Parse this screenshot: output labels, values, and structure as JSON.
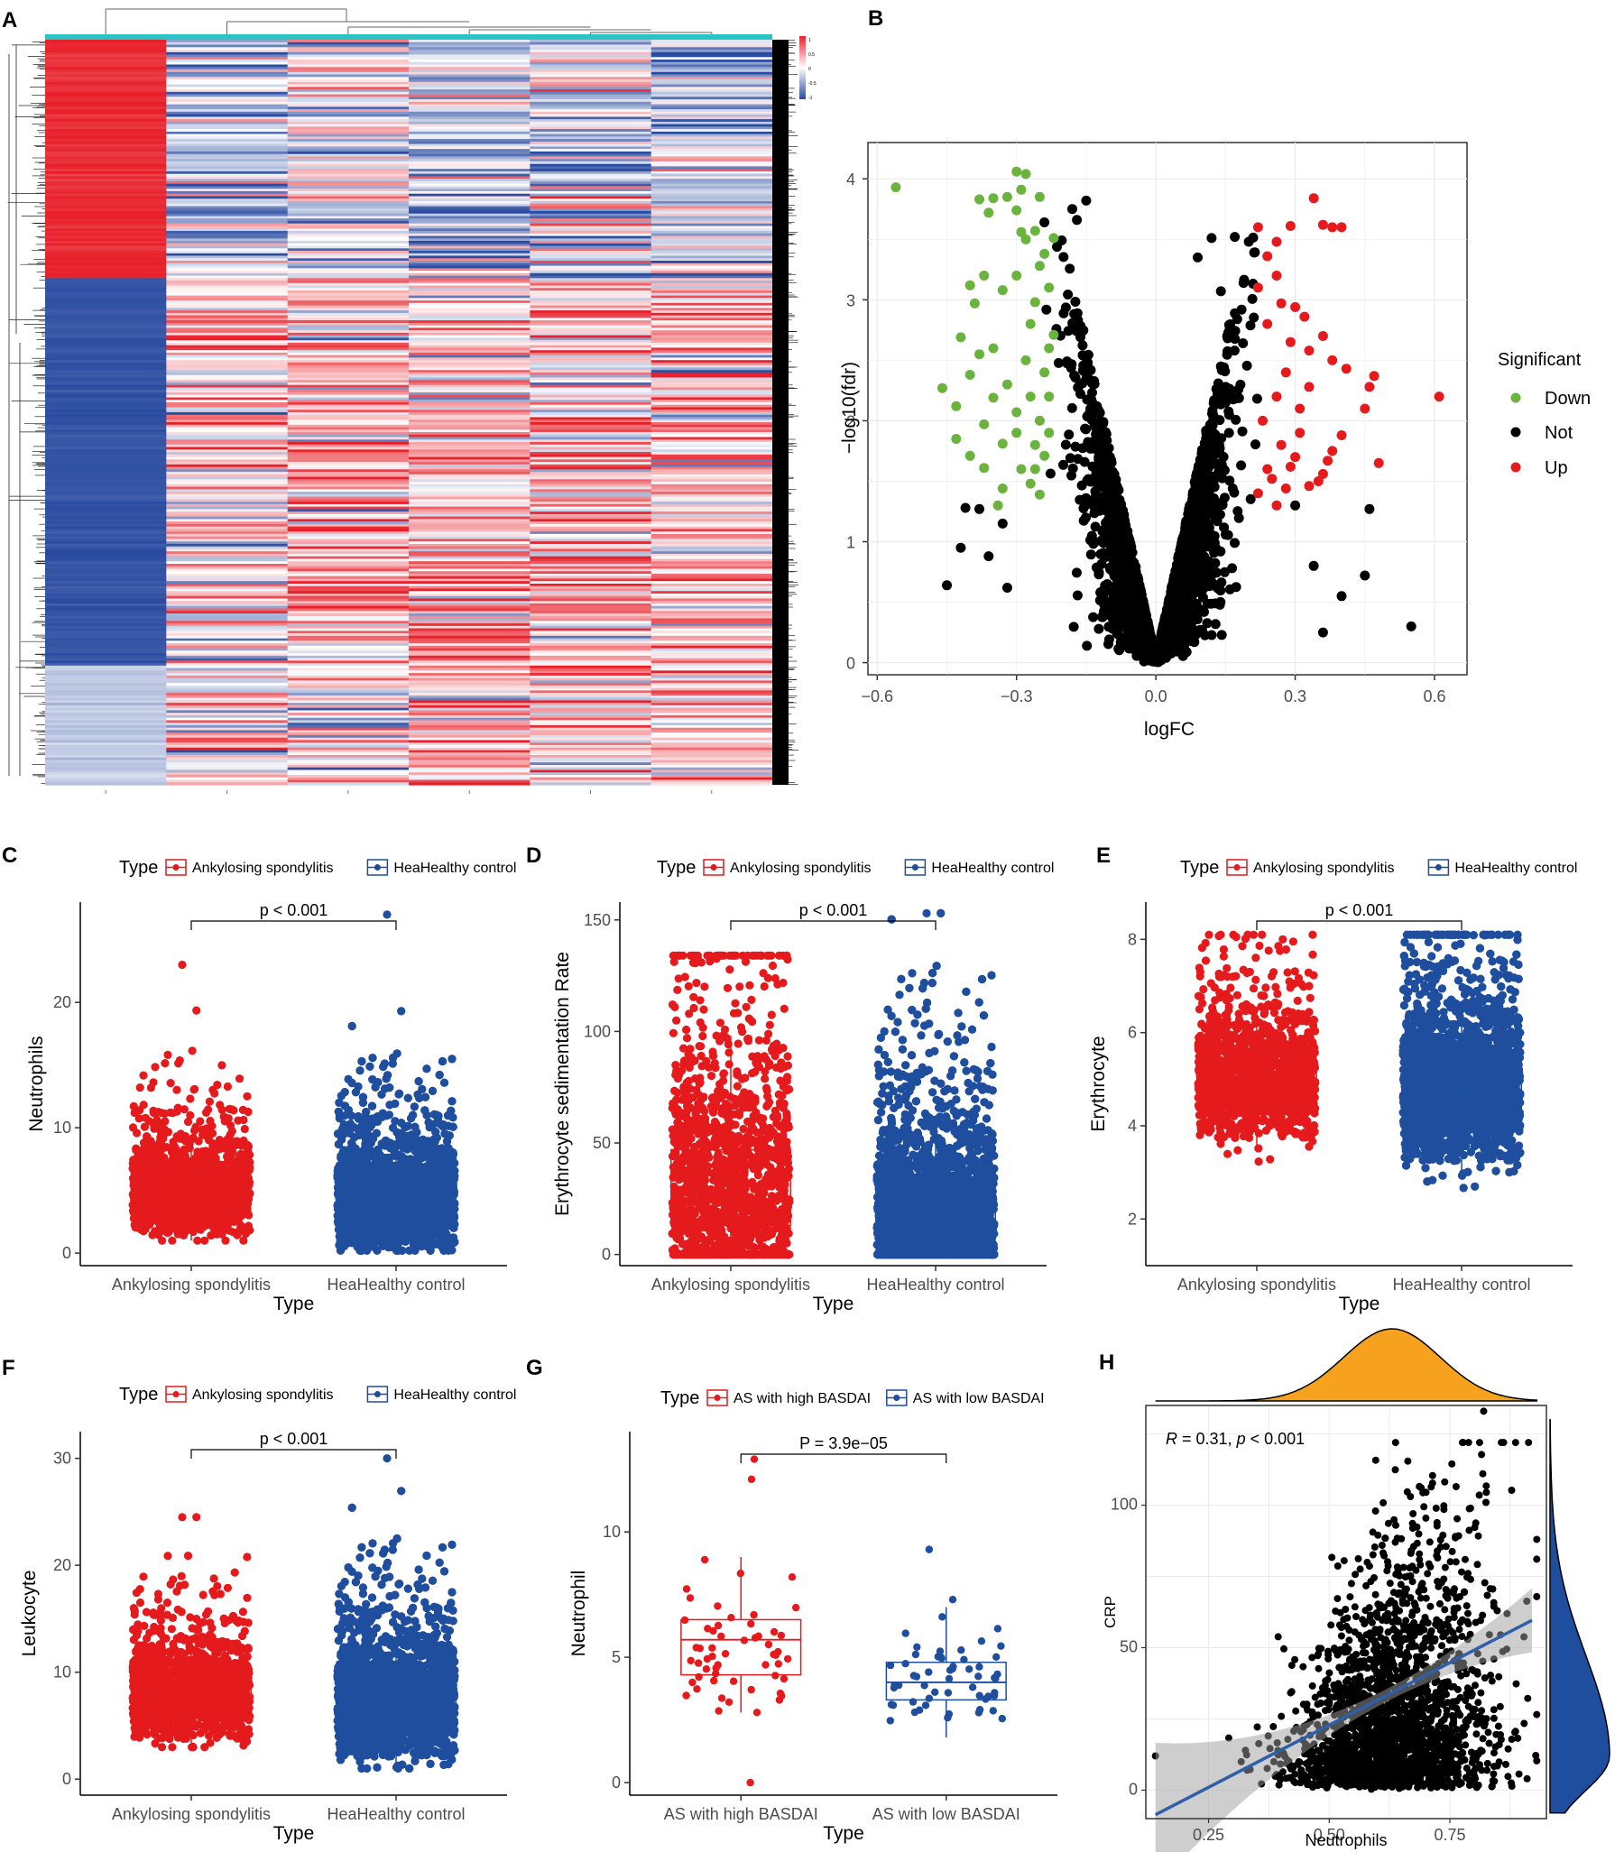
{
  "figure": {
    "colors": {
      "red": "#e41a1c",
      "blue": "#1f4e9e",
      "green": "#6ab33f",
      "black": "#000000",
      "orange": "#f6a21e",
      "heat_red": "#e8202a",
      "heat_blue": "#2a4ba0",
      "grid": "#ebebeb"
    }
  },
  "panels": {
    "A": {
      "label": "A",
      "n_columns": 6,
      "scale_labels": [
        "1",
        "0.5",
        "0",
        "-0.5",
        "-1"
      ]
    },
    "B": {
      "label": "B",
      "chart_data": {
        "type": "scatter",
        "title": "",
        "xlabel": "logFC",
        "ylabel": "−log10(fdr)",
        "xlim": [
          -0.62,
          0.67
        ],
        "ylim": [
          -0.1,
          4.3
        ],
        "xticks": [
          -0.6,
          -0.3,
          0.0,
          0.3,
          0.6
        ],
        "xtick_labels": [
          "−0.6",
          "−0.3",
          "0.0",
          "0.3",
          "0.6"
        ],
        "yticks": [
          0,
          1,
          2,
          3,
          4
        ],
        "ytick_labels": [
          "0",
          "1",
          "2",
          "3",
          "4"
        ],
        "legend_title": "Significant",
        "legend": [
          "Down",
          "Not",
          "Up"
        ],
        "series": [
          {
            "name": "Down",
            "color": "#6ab33f",
            "points": [
              [
                -0.56,
                3.93
              ],
              [
                -0.3,
                4.06
              ],
              [
                -0.28,
                4.04
              ],
              [
                -0.29,
                3.91
              ],
              [
                -0.32,
                3.85
              ],
              [
                -0.25,
                3.85
              ],
              [
                -0.38,
                3.83
              ],
              [
                -0.35,
                3.84
              ],
              [
                -0.36,
                3.72
              ],
              [
                -0.3,
                3.74
              ],
              [
                -0.29,
                3.56
              ],
              [
                -0.26,
                3.57
              ],
              [
                -0.28,
                3.5
              ],
              [
                -0.24,
                3.38
              ],
              [
                -0.25,
                3.28
              ],
              [
                -0.3,
                3.2
              ],
              [
                -0.37,
                3.2
              ],
              [
                -0.4,
                3.12
              ],
              [
                -0.33,
                3.08
              ],
              [
                -0.39,
                2.97
              ],
              [
                -0.42,
                2.69
              ],
              [
                -0.38,
                2.55
              ],
              [
                -0.35,
                2.6
              ],
              [
                -0.4,
                2.38
              ],
              [
                -0.46,
                2.27
              ],
              [
                -0.43,
                2.12
              ],
              [
                -0.35,
                2.19
              ],
              [
                -0.3,
                2.07
              ],
              [
                -0.37,
                1.97
              ],
              [
                -0.43,
                1.85
              ],
              [
                -0.33,
                1.81
              ],
              [
                -0.4,
                1.71
              ],
              [
                -0.37,
                1.61
              ],
              [
                -0.33,
                1.44
              ],
              [
                -0.29,
                1.6
              ],
              [
                -0.27,
                1.48
              ],
              [
                -0.26,
                1.6
              ],
              [
                -0.25,
                1.39
              ],
              [
                -0.24,
                1.71
              ],
              [
                -0.23,
                2.2
              ],
              [
                -0.22,
                2.71
              ],
              [
                -0.26,
                2.98
              ],
              [
                -0.23,
                3.1
              ],
              [
                -0.22,
                3.51
              ],
              [
                -0.28,
                2.5
              ],
              [
                -0.32,
                2.3
              ],
              [
                -0.24,
                2.4
              ],
              [
                -0.27,
                2.2
              ],
              [
                -0.3,
                1.9
              ],
              [
                -0.23,
                1.9
              ],
              [
                -0.26,
                1.8
              ],
              [
                -0.25,
                2.0
              ],
              [
                -0.27,
                2.8
              ],
              [
                -0.23,
                2.6
              ],
              [
                -0.34,
                1.3
              ]
            ]
          },
          {
            "name": "Not",
            "color": "#000000",
            "note": "dense V-shaped cloud generated in script"
          },
          {
            "name": "Up",
            "color": "#e41a1c",
            "points": [
              [
                0.34,
                3.84
              ],
              [
                0.29,
                3.61
              ],
              [
                0.36,
                3.62
              ],
              [
                0.38,
                3.6
              ],
              [
                0.4,
                3.6
              ],
              [
                0.22,
                3.6
              ],
              [
                0.26,
                3.48
              ],
              [
                0.24,
                3.36
              ],
              [
                0.26,
                3.2
              ],
              [
                0.22,
                3.1
              ],
              [
                0.27,
                2.97
              ],
              [
                0.3,
                2.94
              ],
              [
                0.32,
                2.86
              ],
              [
                0.24,
                2.8
              ],
              [
                0.36,
                2.7
              ],
              [
                0.29,
                2.65
              ],
              [
                0.33,
                2.58
              ],
              [
                0.38,
                2.5
              ],
              [
                0.41,
                2.43
              ],
              [
                0.47,
                2.37
              ],
              [
                0.33,
                2.28
              ],
              [
                0.46,
                2.28
              ],
              [
                0.61,
                2.2
              ],
              [
                0.45,
                2.1
              ],
              [
                0.26,
                2.2
              ],
              [
                0.4,
                1.88
              ],
              [
                0.38,
                1.75
              ],
              [
                0.37,
                1.67
              ],
              [
                0.48,
                1.65
              ],
              [
                0.36,
                1.56
              ],
              [
                0.29,
                1.62
              ],
              [
                0.25,
                1.52
              ],
              [
                0.22,
                1.4
              ],
              [
                0.28,
                1.44
              ],
              [
                0.33,
                1.46
              ],
              [
                0.23,
                2.0
              ],
              [
                0.27,
                1.8
              ],
              [
                0.31,
                1.9
              ],
              [
                0.35,
                1.5
              ],
              [
                0.3,
                1.7
              ],
              [
                0.24,
                1.6
              ],
              [
                0.28,
                2.4
              ],
              [
                0.31,
                2.1
              ],
              [
                0.26,
                1.3
              ]
            ]
          }
        ]
      }
    },
    "C": {
      "label": "C",
      "legend_title": "Type",
      "legend": [
        "Ankylosing spondylitis",
        "HeaHealthy control"
      ],
      "pvalue": "p < 0.001",
      "chart_data": {
        "type": "boxplot",
        "categories": [
          "Ankylosing spondylitis",
          "HeaHealthy control"
        ],
        "xlabel": "Type",
        "ylabel": "Neutrophils",
        "ylim": [
          -1,
          28
        ],
        "yticks": [
          0,
          10,
          20
        ],
        "series": [
          {
            "name": "Ankylosing spondylitis",
            "color": "#e41a1c",
            "q1": 3.9,
            "median": 4.8,
            "q3": 6.0,
            "whisker_low": 1.0,
            "whisker_high": 9.1,
            "n_points": 1500,
            "max": 23.0
          },
          {
            "name": "HeaHealthy control",
            "color": "#1f4e9e",
            "q1": 3.1,
            "median": 4.0,
            "q3": 5.3,
            "whisker_low": 0.2,
            "whisker_high": 8.6,
            "n_points": 6000,
            "max": 27.0
          }
        ]
      }
    },
    "D": {
      "label": "D",
      "legend_title": "Type",
      "legend": [
        "Ankylosing spondylitis",
        "HeaHealthy control"
      ],
      "pvalue": "p < 0.001",
      "chart_data": {
        "type": "boxplot",
        "categories": [
          "Ankylosing spondylitis",
          "HeaHealthy control"
        ],
        "xlabel": "Type",
        "ylabel": "Erythrocyte sedimentation Rate",
        "ylim": [
          -5,
          158
        ],
        "yticks": [
          0,
          50,
          100,
          150
        ],
        "series": [
          {
            "name": "Ankylosing spondylitis",
            "color": "#e41a1c",
            "q1": 13,
            "median": 25,
            "q3": 47,
            "whisker_low": 0,
            "whisker_high": 98,
            "n_points": 1500,
            "max": 134
          },
          {
            "name": "HeaHealthy control",
            "color": "#1f4e9e",
            "q1": 7,
            "median": 14,
            "q3": 28,
            "whisker_low": 0,
            "whisker_high": 60,
            "n_points": 6000,
            "max": 153
          }
        ]
      }
    },
    "E": {
      "label": "E",
      "legend_title": "Type",
      "legend": [
        "Ankylosing spondylitis",
        "HeaHealthy control"
      ],
      "pvalue": "p < 0.001",
      "chart_data": {
        "type": "boxplot",
        "categories": [
          "Ankylosing spondylitis",
          "HeaHealthy control"
        ],
        "xlabel": "Type",
        "ylabel": "Erythrocyte",
        "ylim": [
          1.0,
          8.8
        ],
        "yticks": [
          2,
          4,
          6,
          8
        ],
        "series": [
          {
            "name": "Ankylosing spondylitis",
            "color": "#e41a1c",
            "q1": 4.6,
            "median": 4.95,
            "q3": 5.35,
            "whisker_low": 3.5,
            "whisker_high": 6.5,
            "n_points": 1500,
            "max": 8.1
          },
          {
            "name": "HeaHealthy control",
            "color": "#1f4e9e",
            "q1": 4.3,
            "median": 4.7,
            "q3": 5.2,
            "whisker_low": 3.0,
            "whisker_high": 6.5,
            "n_points": 6000,
            "max": 8.1
          }
        ]
      }
    },
    "F": {
      "label": "F",
      "legend_title": "Type",
      "legend": [
        "Ankylosing spondylitis",
        "HeaHealthy control"
      ],
      "pvalue": "p < 0.001",
      "chart_data": {
        "type": "boxplot",
        "categories": [
          "Ankylosing spondylitis",
          "HeaHealthy control"
        ],
        "xlabel": "Type",
        "ylabel": "Leukocyte",
        "ylim": [
          -1.5,
          32.5
        ],
        "yticks": [
          0,
          10,
          20,
          30
        ],
        "series": [
          {
            "name": "Ankylosing spondylitis",
            "color": "#e41a1c",
            "q1": 6.7,
            "median": 7.8,
            "q3": 9.2,
            "whisker_low": 3.0,
            "whisker_high": 13.0,
            "n_points": 1500,
            "max": 24.5
          },
          {
            "name": "HeaHealthy control",
            "color": "#1f4e9e",
            "q1": 5.6,
            "median": 6.8,
            "q3": 8.5,
            "whisker_low": 1.0,
            "whisker_high": 12.5,
            "n_points": 6000,
            "max": 30
          }
        ]
      }
    },
    "G": {
      "label": "G",
      "legend_title": "Type",
      "legend": [
        "AS with high BASDAI",
        "AS with low BASDAI"
      ],
      "pvalue": "P = 3.9e−05",
      "chart_data": {
        "type": "boxplot",
        "categories": [
          "AS with high BASDAI",
          "AS with low BASDAI"
        ],
        "xlabel": "Type",
        "ylabel": "Neutrophil",
        "ylim": [
          -0.5,
          14
        ],
        "yticks": [
          0,
          5,
          10
        ],
        "series": [
          {
            "name": "AS with high BASDAI",
            "color": "#e41a1c",
            "q1": 4.3,
            "median": 5.7,
            "q3": 6.5,
            "whisker_low": 2.8,
            "whisker_high": 9.0,
            "n_points": 55,
            "outliers": [
              12.1,
              12.9,
              0.0
            ]
          },
          {
            "name": "AS with low BASDAI",
            "color": "#1f4e9e",
            "q1": 3.3,
            "median": 4.0,
            "q3": 4.8,
            "whisker_low": 1.8,
            "whisker_high": 7.0,
            "n_points": 55,
            "outliers": [
              9.3,
              7.3
            ]
          }
        ]
      }
    },
    "H": {
      "label": "H",
      "stat_text": "R = 0.31, p < 0.001",
      "stat_r": "R",
      "stat_mid": " = 0.31, ",
      "stat_p": "p",
      "stat_end": " < 0.001",
      "chart_data": {
        "type": "scatter",
        "xlabel": "Neutrophils",
        "ylabel": "CRP",
        "xlim": [
          0.12,
          0.95
        ],
        "ylim": [
          -10,
          135
        ],
        "xticks": [
          0.25,
          0.5,
          0.75
        ],
        "xtick_labels": [
          "0.25",
          "0.50",
          "0.75"
        ],
        "yticks": [
          0,
          50,
          100
        ],
        "ytick_labels": [
          "0",
          "50",
          "100"
        ],
        "regression": {
          "slope": 87.5,
          "intercept": -20.9,
          "x_range": [
            0.14,
            0.92
          ],
          "color": "#2f5fa8"
        },
        "n_points": 2200,
        "marginal_x": {
          "color": "#f6a21e",
          "mean": 0.63,
          "sd": 0.1
        },
        "marginal_y": {
          "color": "#1f4e9e",
          "mode": 12,
          "sd_low": 12,
          "sd_high": 35
        }
      }
    }
  }
}
